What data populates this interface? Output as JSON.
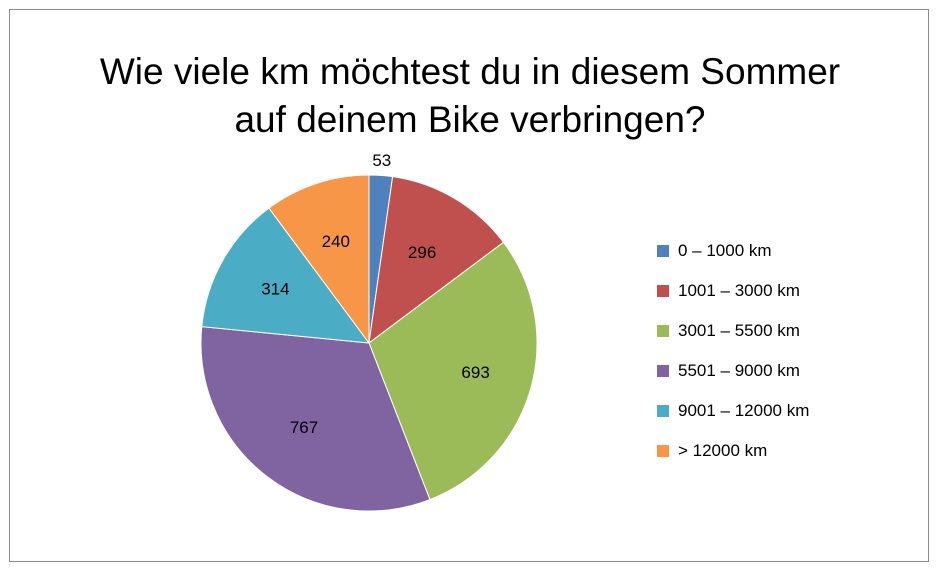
{
  "chart_data": {
    "type": "pie",
    "title": [
      "Wie viele km möchtest du in diesem Sommer",
      "auf deinem Bike verbringen?"
    ],
    "categories": [
      "0 – 1000 km",
      "1001 – 3000 km",
      "3001 – 5500 km",
      "5501 – 9000 km",
      "9001 – 12000 km",
      "> 12000 km"
    ],
    "values": [
      53,
      296,
      693,
      767,
      314,
      240
    ],
    "value_labels": [
      "53",
      "296",
      "693",
      "767",
      "314",
      "240"
    ],
    "colors": [
      "#4f81bd",
      "#c0504d",
      "#9bbb59",
      "#8064a2",
      "#4bacc6",
      "#f79646"
    ],
    "legend_placement": "right",
    "start_angle": "top, clockwise"
  }
}
